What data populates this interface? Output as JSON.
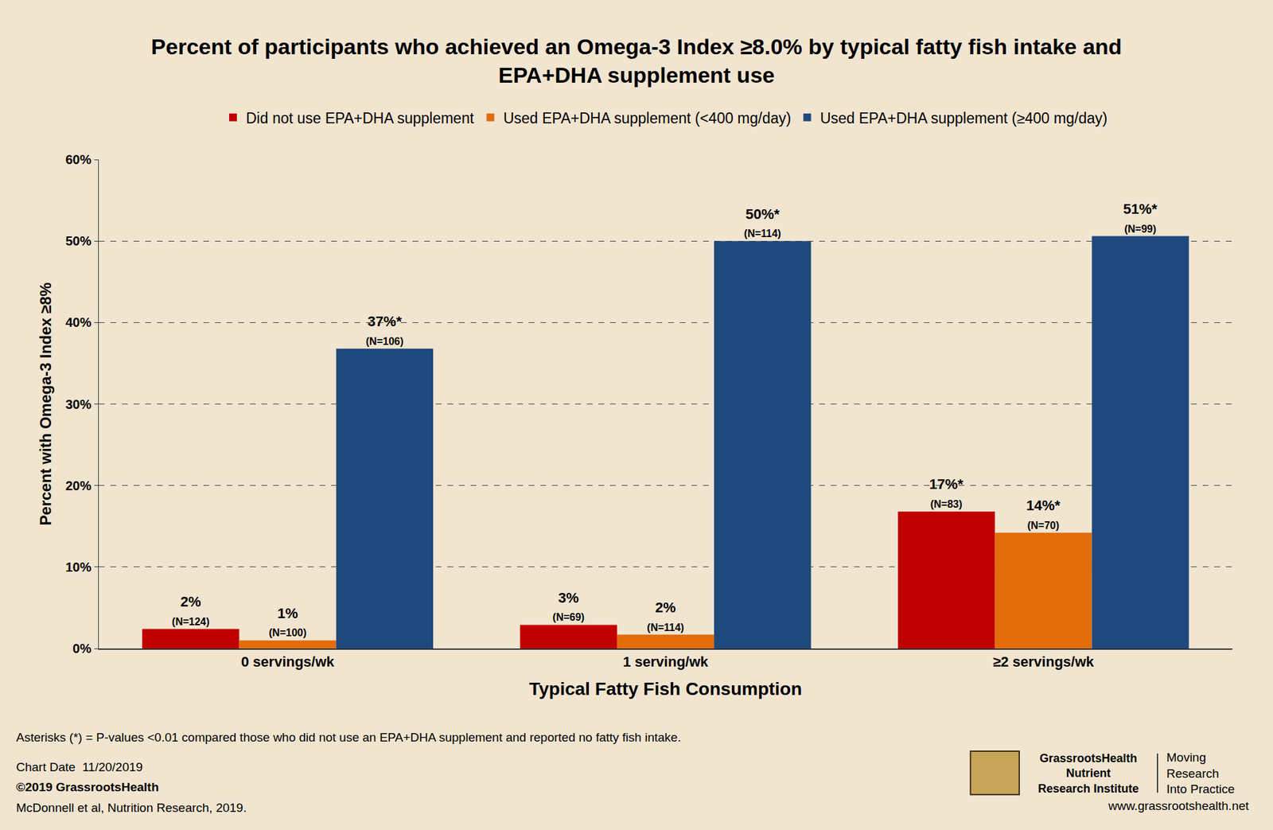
{
  "chart_data": {
    "type": "bar",
    "title": "Percent of participants who achieved an Omega-3 Index ≥8.0% by typical fatty fish intake and\nEPA+DHA supplement use",
    "x_label": "Typical Fatty Fish Consumption",
    "y_label": "Percent with Omega-3 Index ≥8%",
    "categories": [
      "0 servings/wk",
      "1 serving/wk",
      "≥2 servings/wk"
    ],
    "series": [
      {
        "name": "Did not use EPA+DHA supplement",
        "color": "#c00000",
        "values": [
          2.4,
          2.9,
          16.8
        ],
        "value_labels": [
          "2%",
          "3%",
          "17%*"
        ],
        "n_labels": [
          "(N=124)",
          "(N=69)",
          "(N=83)"
        ]
      },
      {
        "name": "Used EPA+DHA supplement (<400 mg/day)",
        "color": "#e36c0a",
        "values": [
          1.0,
          1.7,
          14.2
        ],
        "value_labels": [
          "1%",
          "2%",
          "14%*"
        ],
        "n_labels": [
          "(N=100)",
          "(N=114)",
          "(N=70)"
        ]
      },
      {
        "name": "Used EPA+DHA supplement (≥400 mg/day)",
        "color": "#1f497d",
        "values": [
          36.8,
          50.0,
          50.6
        ],
        "value_labels": [
          "37%*",
          "50%*",
          "51%*"
        ],
        "n_labels": [
          "(N=106)",
          "(N=114)",
          "(N=99)"
        ]
      }
    ],
    "ylim": [
      0,
      60
    ],
    "yticks": [
      {
        "value": 0,
        "label": "0%"
      },
      {
        "value": 10,
        "label": "10%"
      },
      {
        "value": 20,
        "label": "20%"
      },
      {
        "value": 30,
        "label": "30%"
      },
      {
        "value": 40,
        "label": "40%"
      },
      {
        "value": 50,
        "label": "50%"
      },
      {
        "value": 60,
        "label": "60%"
      }
    ],
    "grid": true,
    "legend": "top",
    "data_labels": true,
    "footnote": "Asterisks (*) = P-values <0.01 compared those who did not use an EPA+DHA supplement and reported no fatty fish intake.",
    "credits": [
      "Chart Date  11/20/2019",
      "©2019 GrassrootsHealth",
      "McDonnell et al, Nutrition Research, 2019."
    ],
    "logo": {
      "name": [
        "GrassrootsHealth",
        "Nutrient",
        "Research Institute"
      ],
      "tagline": [
        "Moving",
        "Research",
        "Into Practice"
      ],
      "url": "www.grassrootshealth.net"
    }
  }
}
